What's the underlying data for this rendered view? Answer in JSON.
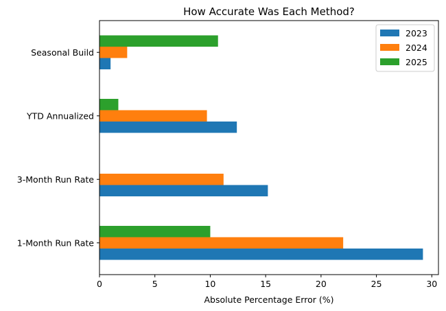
{
  "chart_data": {
    "type": "bar",
    "orientation": "horizontal",
    "title": "How Accurate Was Each Method?",
    "xlabel": "Absolute Percentage Error (%)",
    "ylabel": "",
    "xlim": [
      0,
      30.6
    ],
    "xticks": [
      0,
      5,
      10,
      15,
      20,
      25,
      30
    ],
    "categories": [
      "1-Month Run Rate",
      "3-Month Run Rate",
      "YTD Annualized",
      "Seasonal Build"
    ],
    "series": [
      {
        "name": "2023",
        "color": "#1f77b4",
        "values": [
          29.2,
          15.2,
          12.4,
          1.0
        ]
      },
      {
        "name": "2024",
        "color": "#ff7f0e",
        "values": [
          22.0,
          11.2,
          9.7,
          2.5
        ]
      },
      {
        "name": "2025",
        "color": "#2ca02c",
        "values": [
          10.0,
          0,
          1.7,
          10.7
        ]
      }
    ],
    "grid": false,
    "legend_position": "top-right"
  }
}
